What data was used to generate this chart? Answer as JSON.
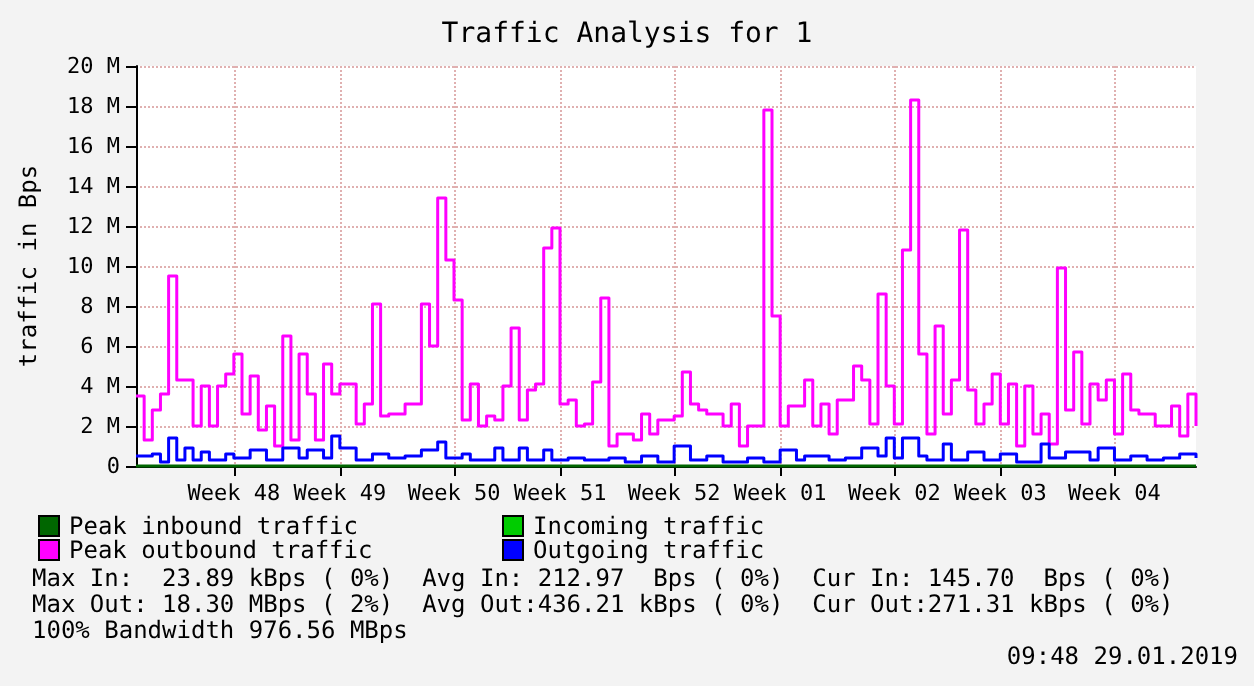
{
  "chart_data": {
    "type": "step",
    "title": "Traffic Analysis for 1",
    "ylabel": "traffic in Bps",
    "categories": [
      null,
      null,
      null,
      null,
      null,
      null,
      null,
      null,
      null,
      null,
      null,
      null,
      "Week 48",
      null,
      null,
      null,
      null,
      null,
      null,
      null,
      null,
      null,
      null,
      null,
      null,
      "Week 49",
      null,
      null,
      null,
      null,
      null,
      null,
      null,
      null,
      null,
      null,
      null,
      null,
      null,
      "Week 50",
      null,
      null,
      null,
      null,
      null,
      null,
      null,
      null,
      null,
      null,
      null,
      null,
      "Week 51",
      null,
      null,
      null,
      null,
      null,
      null,
      null,
      null,
      null,
      null,
      null,
      null,
      null,
      "Week 52",
      null,
      null,
      null,
      null,
      null,
      null,
      null,
      null,
      null,
      null,
      null,
      null,
      "Week 01",
      null,
      null,
      null,
      null,
      null,
      null,
      null,
      null,
      null,
      null,
      null,
      null,
      null,
      "Week 02",
      null,
      null,
      null,
      null,
      null,
      null,
      null,
      null,
      null,
      null,
      null,
      null,
      "Week 03",
      null,
      null,
      null,
      null,
      null,
      null,
      null,
      null,
      null,
      null,
      null,
      null,
      null,
      "Week 04",
      null,
      null,
      null,
      null,
      null,
      null,
      null,
      null,
      null,
      null
    ],
    "ylim": [
      0,
      20
    ],
    "yticks": [
      0,
      {
        "value": 2,
        "label": "2 M"
      },
      {
        "value": 4,
        "label": "4 M"
      },
      {
        "value": 6,
        "label": "6 M"
      },
      {
        "value": 8,
        "label": "8 M"
      },
      {
        "value": 10,
        "label": "10 M"
      },
      {
        "value": 12,
        "label": "12 M"
      },
      {
        "value": 14,
        "label": "14 M"
      },
      {
        "value": 16,
        "label": "16 M"
      },
      {
        "value": 18,
        "label": "18 M"
      },
      {
        "value": 20,
        "label": "20 M"
      }
    ],
    "grid": true,
    "legend": "bottom left",
    "series": [
      {
        "name": "Peak inbound traffic",
        "color": "#006600",
        "values": [
          0,
          0,
          0,
          0,
          0,
          0,
          0,
          0,
          0,
          0,
          0,
          0,
          0,
          0,
          0,
          0,
          0,
          0,
          0,
          0,
          0,
          0,
          0,
          0,
          0,
          0,
          0,
          0,
          0,
          0,
          0,
          0,
          0,
          0,
          0,
          0,
          0,
          0,
          0,
          0,
          0,
          0,
          0,
          0,
          0,
          0,
          0,
          0,
          0,
          0,
          0,
          0,
          0,
          0,
          0,
          0,
          0,
          0,
          0,
          0,
          0,
          0,
          0,
          0,
          0,
          0,
          0,
          0,
          0,
          0,
          0,
          0,
          0,
          0,
          0,
          0,
          0,
          0,
          0,
          0,
          0,
          0,
          0,
          0,
          0,
          0,
          0,
          0,
          0,
          0,
          0,
          0,
          0,
          0,
          0,
          0,
          0,
          0,
          0,
          0,
          0,
          0,
          0,
          0,
          0,
          0,
          0,
          0,
          0,
          0,
          0,
          0,
          0,
          0,
          0,
          0,
          0,
          0,
          0,
          0,
          0,
          0,
          0,
          0,
          0,
          0,
          0,
          0,
          0,
          0,
          0
        ]
      },
      {
        "name": "Incoming traffic",
        "color": "#00cc00",
        "type": "area",
        "values": [
          null,
          null,
          null,
          null,
          null,
          null,
          null,
          null,
          null,
          null,
          null,
          null,
          null,
          null,
          null,
          null,
          null,
          null,
          null,
          null,
          null,
          null,
          null,
          null,
          null,
          null,
          null,
          null,
          null,
          null,
          null,
          null,
          null,
          null,
          null,
          null,
          null,
          null,
          null,
          null,
          null,
          null,
          null,
          null,
          null,
          null,
          null,
          null,
          null,
          null,
          null,
          null,
          null,
          null,
          null,
          null,
          null,
          null,
          null,
          null,
          null,
          null,
          null,
          null,
          null,
          null,
          null,
          null,
          null,
          null,
          null,
          null,
          null,
          null,
          null,
          null,
          null,
          null,
          null,
          null,
          null,
          null,
          null,
          null,
          null,
          null,
          null,
          null,
          null,
          null,
          null,
          null,
          null,
          null,
          null,
          null,
          null,
          null,
          null,
          null,
          null,
          null,
          null,
          null,
          null,
          null,
          null,
          null,
          null,
          null,
          null,
          null,
          null,
          null,
          null,
          null,
          null,
          null,
          null,
          null,
          null,
          null,
          null,
          null,
          null,
          null,
          null,
          null,
          null,
          null,
          null
        ]
      },
      {
        "name": "Peak outbound traffic",
        "color": "#ff00ff",
        "values": [
          3.5,
          1.3,
          2.8,
          3.6,
          9.5,
          4.3,
          4.3,
          2.0,
          4.0,
          2.0,
          4.0,
          4.6,
          5.6,
          2.6,
          4.5,
          1.8,
          3.0,
          1.0,
          6.5,
          1.3,
          5.6,
          3.6,
          1.3,
          5.1,
          3.6,
          4.1,
          4.1,
          2.1,
          3.1,
          8.1,
          2.5,
          2.6,
          2.6,
          3.1,
          3.1,
          8.1,
          6.0,
          13.4,
          10.3,
          8.3,
          2.3,
          4.1,
          2.0,
          2.5,
          2.3,
          4.0,
          6.9,
          2.3,
          3.8,
          4.1,
          10.9,
          11.9,
          3.1,
          3.3,
          2.0,
          2.1,
          4.2,
          8.4,
          1.0,
          1.6,
          1.6,
          1.3,
          2.6,
          1.6,
          2.3,
          2.3,
          2.5,
          4.7,
          3.1,
          2.8,
          2.6,
          2.6,
          2.0,
          3.1,
          1.0,
          2.0,
          2.0,
          17.8,
          7.5,
          2.0,
          3.0,
          3.0,
          4.3,
          2.0,
          3.1,
          1.6,
          3.3,
          3.3,
          5.0,
          4.3,
          2.1,
          8.6,
          4.0,
          2.1,
          10.8,
          18.3,
          5.6,
          1.6,
          7.0,
          2.6,
          4.3,
          11.8,
          3.8,
          2.1,
          3.1,
          4.6,
          2.1,
          4.1,
          1.0,
          4.0,
          1.6,
          2.6,
          1.1,
          9.9,
          2.8,
          5.7,
          2.1,
          4.1,
          3.3,
          4.3,
          1.6,
          4.6,
          2.8,
          2.6,
          2.6,
          2.0,
          2.0,
          3.0,
          1.5,
          3.6,
          2.0
        ]
      },
      {
        "name": "Outgoing traffic",
        "color": "#0000ff",
        "values": [
          0.5,
          0.5,
          0.6,
          0.2,
          1.4,
          0.3,
          0.9,
          0.3,
          0.7,
          0.3,
          0.3,
          0.6,
          0.4,
          0.4,
          0.8,
          0.8,
          0.3,
          0.3,
          0.9,
          0.9,
          0.4,
          0.8,
          0.8,
          0.4,
          1.5,
          0.9,
          0.9,
          0.3,
          0.3,
          0.6,
          0.6,
          0.4,
          0.4,
          0.5,
          0.5,
          0.8,
          0.8,
          1.2,
          0.4,
          0.4,
          0.6,
          0.3,
          0.3,
          0.3,
          0.9,
          0.3,
          0.3,
          0.9,
          0.3,
          0.3,
          0.8,
          0.3,
          0.3,
          0.4,
          0.4,
          0.3,
          0.3,
          0.3,
          0.4,
          0.4,
          0.2,
          0.2,
          0.5,
          0.5,
          0.2,
          0.2,
          1.0,
          1.0,
          0.3,
          0.3,
          0.5,
          0.5,
          0.2,
          0.2,
          0.2,
          0.4,
          0.4,
          0.2,
          0.2,
          0.8,
          0.8,
          0.3,
          0.5,
          0.5,
          0.5,
          0.3,
          0.3,
          0.4,
          0.4,
          0.9,
          0.9,
          0.5,
          1.4,
          0.4,
          1.4,
          1.4,
          0.5,
          0.3,
          0.3,
          1.1,
          0.3,
          0.3,
          0.7,
          0.7,
          0.3,
          0.3,
          0.6,
          0.6,
          0.2,
          0.2,
          0.2,
          1.1,
          0.4,
          0.4,
          0.7,
          0.7,
          0.7,
          0.3,
          0.9,
          0.9,
          0.3,
          0.3,
          0.5,
          0.5,
          0.3,
          0.3,
          0.4,
          0.4,
          0.6,
          0.6,
          0.4
        ]
      }
    ],
    "annotations": [
      "Max In:  23.89 kBps ( 0%)  Avg In: 212.97  Bps ( 0%)  Cur In: 145.70  Bps ( 0%)",
      "Max Out: 18.30 MBps ( 2%)  Avg Out:436.21 kBps ( 0%)  Cur Out:271.31 kBps ( 0%)",
      "100% Bandwidth 976.56 MBps",
      "09:48 29.01.2019"
    ]
  }
}
